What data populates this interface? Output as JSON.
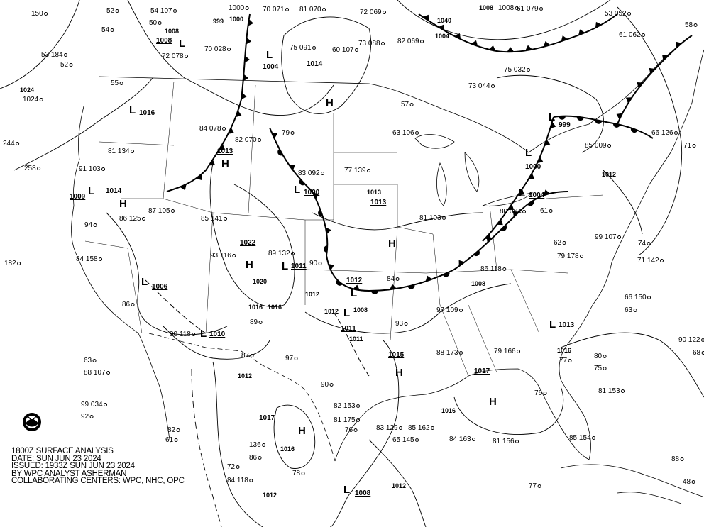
{
  "legend": {
    "title": "1800Z SURFACE ANALYSIS",
    "date": "DATE: SUN JUN 23 2024",
    "issued": "ISSUED: 1933Z SUN JUN 23 2024",
    "analyst": "BY WPC ANALYST ASHERMAN",
    "centers": "COLLABORATING CENTERS: WPC, NHC, OPC"
  },
  "logo": {
    "name": "NOAA",
    "icon": "noaa-logo-icon"
  },
  "pressure_centers": [
    {
      "type": "L",
      "value": "1008"
    },
    {
      "type": "L",
      "value": "1004"
    },
    {
      "type": "H",
      "value": "1014"
    },
    {
      "type": "L",
      "value": "1016"
    },
    {
      "type": "H",
      "value": "1013"
    },
    {
      "type": "L",
      "value": "1009"
    },
    {
      "type": "H",
      "value": "1014"
    },
    {
      "type": "L",
      "value": "1000"
    },
    {
      "type": "H",
      "value": "1013"
    },
    {
      "type": "H",
      "value": "1022"
    },
    {
      "type": "L",
      "value": "1011"
    },
    {
      "type": "L",
      "value": "1006"
    },
    {
      "type": "L",
      "value": "1010"
    },
    {
      "type": "L",
      "value": "1012"
    },
    {
      "type": "L",
      "value": "1011"
    },
    {
      "type": "H",
      "value": "1015"
    },
    {
      "type": "H",
      "value": "1017"
    },
    {
      "type": "H",
      "value": "1017"
    },
    {
      "type": "L",
      "value": "1008"
    },
    {
      "type": "L",
      "value": "1013"
    },
    {
      "type": "L",
      "value": "999"
    },
    {
      "type": "L",
      "value": "1004"
    },
    {
      "type": "L",
      "value": "1000"
    }
  ],
  "isobar_labels": [
    "1000",
    "999",
    "1008",
    "1040",
    "1004",
    "1008",
    "1024",
    "1020",
    "1016",
    "1012",
    "1008",
    "1013",
    "1012",
    "1011",
    "1016",
    "1012",
    "1016",
    "1016",
    "1012",
    "1012",
    "1016",
    "1008",
    "1012"
  ],
  "stations": [
    "150",
    "52",
    "54 107",
    "1000",
    "70 071",
    "81 070",
    "72 069",
    "1008",
    "61 079",
    "53 052",
    "58",
    "53 184",
    "1024",
    "54",
    "50",
    "72 078",
    "70 028",
    "75 091",
    "60 107",
    "73 088",
    "82 069",
    "75 032",
    "61 062",
    "52",
    "244",
    "258",
    "55",
    "79",
    "81 134",
    "91 103",
    "84 078",
    "82 070",
    "63 106",
    "57",
    "73 044",
    "85 009",
    "66 126",
    "71",
    "182",
    "94",
    "86 125",
    "87 105",
    "85 141",
    "83 092",
    "77 139",
    "81 103",
    "80 064",
    "61",
    "62",
    "99 107",
    "84 158",
    "93 116",
    "89 132",
    "90",
    "84",
    "86 118",
    "79 178",
    "74",
    "71 142",
    "63",
    "88 107",
    "90 118",
    "89",
    "97",
    "93",
    "97 109",
    "88 173",
    "79 166",
    "76",
    "66 150",
    "63",
    "99 034",
    "92",
    "86",
    "87",
    "90",
    "82 153",
    "81 175",
    "77",
    "80",
    "75",
    "90 122",
    "68",
    "82",
    "61",
    "136",
    "86",
    "76",
    "83 129",
    "85 162",
    "84 163",
    "81 156",
    "85 154",
    "81 153",
    "88",
    "77",
    "48",
    "72",
    "84 118",
    "78",
    "65 145"
  ],
  "colors": {
    "lines": "#000000",
    "background": "#ffffff"
  }
}
